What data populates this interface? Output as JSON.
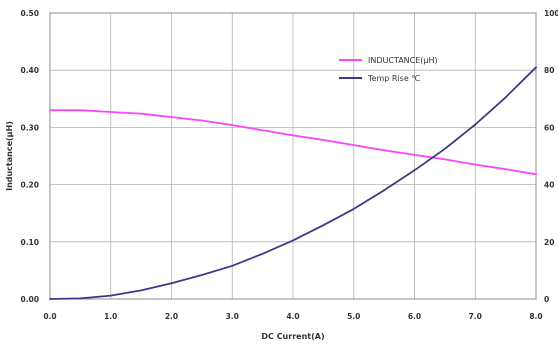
{
  "chart_data": {
    "type": "line",
    "title": "",
    "xlabel": "DC Current(A)",
    "ylabel": "Inductance(μH)",
    "y2label": "",
    "xlim": [
      0,
      8
    ],
    "ylim": [
      0,
      0.5
    ],
    "y2lim": [
      0,
      100
    ],
    "x_ticks": [
      "0.0",
      "1.0",
      "2.0",
      "3.0",
      "4.0",
      "5.0",
      "6.0",
      "7.0",
      "8.0"
    ],
    "y_ticks": [
      "0.00",
      "0.10",
      "0.20",
      "0.30",
      "0.40",
      "0.50"
    ],
    "y2_ticks": [
      "0",
      "20",
      "40",
      "60",
      "80",
      "100"
    ],
    "grid": true,
    "legend_position": "top-right",
    "series": [
      {
        "name": "INDUCTANCE(μH)",
        "axis": "left",
        "color": "#ff44ff",
        "x": [
          0,
          0.5,
          1.0,
          1.5,
          2.0,
          2.5,
          3.0,
          3.5,
          4.0,
          4.5,
          5.0,
          5.5,
          6.0,
          6.5,
          7.0,
          7.5,
          8.0
        ],
        "y": [
          0.33,
          0.33,
          0.327,
          0.324,
          0.318,
          0.312,
          0.304,
          0.295,
          0.286,
          0.278,
          0.269,
          0.26,
          0.252,
          0.244,
          0.235,
          0.227,
          0.218
        ]
      },
      {
        "name": "Temp Rise ℃",
        "axis": "right",
        "color": "#3a3a8c",
        "x": [
          0,
          0.5,
          1.0,
          1.5,
          2.0,
          2.5,
          3.0,
          3.5,
          4.0,
          4.5,
          5.0,
          5.5,
          6.0,
          6.5,
          7.0,
          7.5,
          8.0
        ],
        "y": [
          0,
          0.2,
          1.2,
          3.0,
          5.5,
          8.4,
          11.6,
          15.8,
          20.5,
          25.8,
          31.5,
          38.0,
          45.0,
          52.5,
          61.0,
          70.5,
          81.0
        ]
      }
    ]
  }
}
